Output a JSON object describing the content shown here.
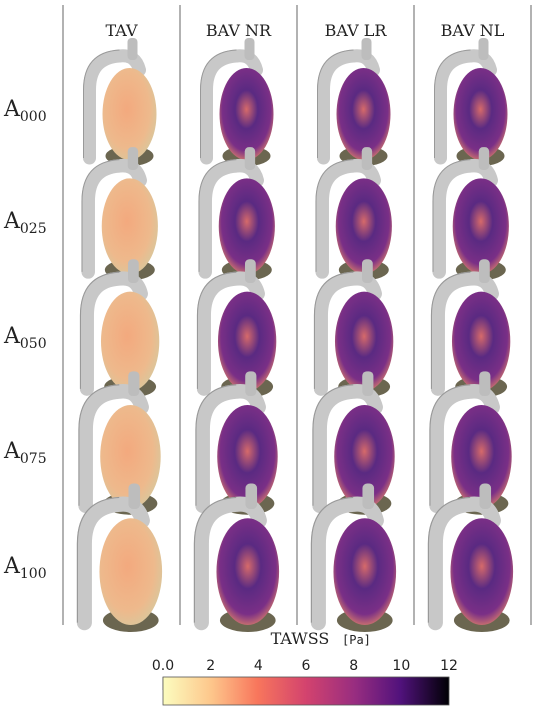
{
  "columns": [
    "TAV",
    "BAV NR",
    "BAV LR",
    "BAV NL"
  ],
  "rows": [
    {
      "main": "A",
      "sub": "000"
    },
    {
      "main": "A",
      "sub": "025"
    },
    {
      "main": "A",
      "sub": "050"
    },
    {
      "main": "A",
      "sub": "075"
    },
    {
      "main": "A",
      "sub": "100"
    }
  ],
  "colorbar": {
    "title": "TAWSS",
    "unit": "[Pa]",
    "lim": [
      0,
      12
    ],
    "ticks": [
      {
        "value": 0,
        "label": "0.0"
      },
      2,
      4,
      6,
      8,
      10,
      12
    ]
  }
}
